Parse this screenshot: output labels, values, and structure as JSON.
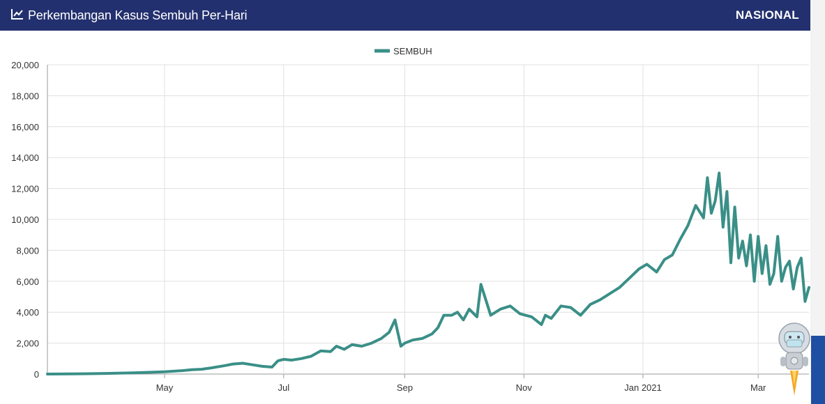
{
  "header": {
    "title": "Perkembangan Kasus Sembuh Per-Hari",
    "scope": "NASIONAL",
    "icon": "line-chart-icon"
  },
  "colors": {
    "header_bg": "#23306f",
    "series": "#3a8f87",
    "grid": "#e0e0e0",
    "side_tab": "#1f4fa3"
  },
  "chart_data": {
    "type": "line",
    "title": "",
    "xlabel": "",
    "ylabel": "",
    "ylim": [
      0,
      20000
    ],
    "yticks": [
      0,
      2000,
      4000,
      6000,
      8000,
      10000,
      12000,
      14000,
      16000,
      18000,
      20000
    ],
    "ytick_labels": [
      "0",
      "2,000",
      "4,000",
      "6,000",
      "8,000",
      "10,000",
      "12,000",
      "14,000",
      "16,000",
      "18,000",
      "20,000"
    ],
    "xlim": [
      "2020-03-02",
      "2021-03-27"
    ],
    "xticks": [
      "2020-05-01",
      "2020-07-01",
      "2020-09-01",
      "2020-11-01",
      "2021-01-01",
      "2021-03-01"
    ],
    "xtick_labels": [
      "May",
      "Jul",
      "Sep",
      "Nov",
      "Jan 2021",
      "Mar"
    ],
    "grid": true,
    "legend": "top-center",
    "series": [
      {
        "name": "SEMBUH",
        "x": [
          "2020-03-02",
          "2020-03-15",
          "2020-04-01",
          "2020-04-15",
          "2020-05-01",
          "2020-05-10",
          "2020-05-15",
          "2020-05-20",
          "2020-05-25",
          "2020-06-01",
          "2020-06-05",
          "2020-06-10",
          "2020-06-15",
          "2020-06-20",
          "2020-06-25",
          "2020-06-28",
          "2020-07-01",
          "2020-07-05",
          "2020-07-10",
          "2020-07-15",
          "2020-07-20",
          "2020-07-25",
          "2020-07-28",
          "2020-08-01",
          "2020-08-05",
          "2020-08-10",
          "2020-08-15",
          "2020-08-20",
          "2020-08-24",
          "2020-08-27",
          "2020-08-30",
          "2020-09-01",
          "2020-09-05",
          "2020-09-10",
          "2020-09-15",
          "2020-09-18",
          "2020-09-21",
          "2020-09-25",
          "2020-09-28",
          "2020-10-01",
          "2020-10-04",
          "2020-10-08",
          "2020-10-10",
          "2020-10-15",
          "2020-10-20",
          "2020-10-25",
          "2020-10-30",
          "2020-11-05",
          "2020-11-10",
          "2020-11-12",
          "2020-11-15",
          "2020-11-20",
          "2020-11-25",
          "2020-11-30",
          "2020-12-05",
          "2020-12-10",
          "2020-12-15",
          "2020-12-20",
          "2020-12-25",
          "2020-12-30",
          "2021-01-03",
          "2021-01-08",
          "2021-01-12",
          "2021-01-16",
          "2021-01-20",
          "2021-01-24",
          "2021-01-28",
          "2021-02-01",
          "2021-02-03",
          "2021-02-05",
          "2021-02-07",
          "2021-02-09",
          "2021-02-11",
          "2021-02-13",
          "2021-02-15",
          "2021-02-17",
          "2021-02-19",
          "2021-02-21",
          "2021-02-23",
          "2021-02-25",
          "2021-02-27",
          "2021-03-01",
          "2021-03-03",
          "2021-03-05",
          "2021-03-07",
          "2021-03-09",
          "2021-03-11",
          "2021-03-13",
          "2021-03-15",
          "2021-03-17",
          "2021-03-19",
          "2021-03-21",
          "2021-03-23",
          "2021-03-25",
          "2021-03-27"
        ],
        "values": [
          0,
          10,
          40,
          80,
          150,
          220,
          280,
          310,
          400,
          550,
          650,
          700,
          600,
          500,
          450,
          850,
          950,
          900,
          1000,
          1150,
          1500,
          1450,
          1800,
          1600,
          1900,
          1800,
          2000,
          2300,
          2700,
          3500,
          1800,
          2000,
          2200,
          2300,
          2600,
          3000,
          3800,
          3800,
          4000,
          3500,
          4200,
          3700,
          5800,
          3800,
          4200,
          4400,
          3900,
          3700,
          3200,
          3800,
          3600,
          4400,
          4300,
          3800,
          4500,
          4800,
          5200,
          5600,
          6200,
          6800,
          7100,
          6600,
          7400,
          7700,
          8700,
          9600,
          10900,
          10100,
          12700,
          10400,
          11200,
          13000,
          9500,
          11800,
          7200,
          10800,
          7500,
          8600,
          7000,
          9000,
          6000,
          8900,
          6500,
          8300,
          5800,
          6500,
          8900,
          6000,
          6900,
          7300,
          5500,
          6900,
          7500,
          4700,
          5600
        ]
      }
    ]
  }
}
